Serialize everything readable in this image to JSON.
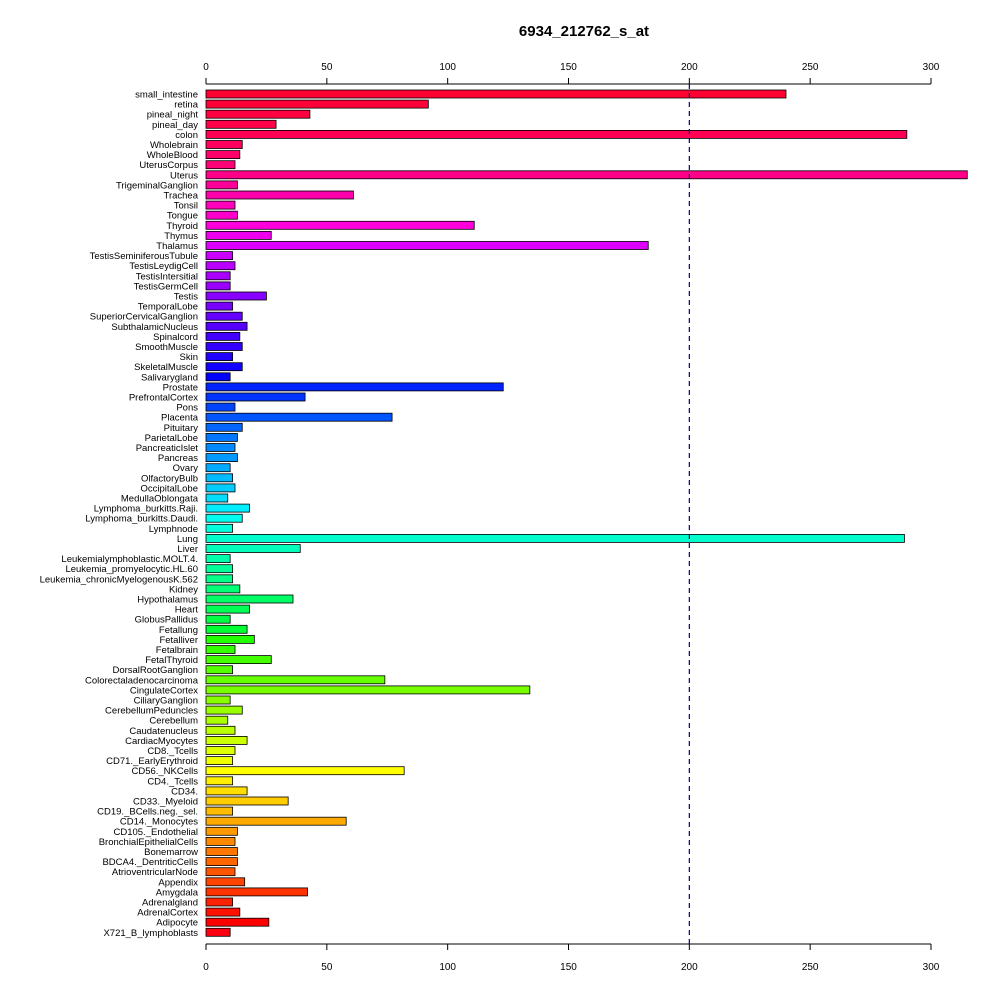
{
  "chart_data": {
    "type": "bar",
    "orientation": "horizontal",
    "title": "6934_212762_s_at",
    "xlabel": "",
    "ylabel": "",
    "xlim": [
      0,
      300
    ],
    "x_ticks": [
      0,
      50,
      100,
      150,
      200,
      250,
      300
    ],
    "reference_line": 200,
    "reference_line_color": "#00008B",
    "grid": false,
    "legend": "none",
    "categories": [
      "small_intestine",
      "retina",
      "pineal_night",
      "pineal_day",
      "colon",
      "Wholebrain",
      "WholeBlood",
      "UterusCorpus",
      "Uterus",
      "TrigeminalGanglion",
      "Trachea",
      "Tonsil",
      "Tongue",
      "Thyroid",
      "Thymus",
      "Thalamus",
      "TestisSeminiferousTubule",
      "TestisLeydigCell",
      "TestisIntersitial",
      "TestisGermCell",
      "Testis",
      "TemporalLobe",
      "SuperiorCervicalGanglion",
      "SubthalamicNucleus",
      "Spinalcord",
      "SmoothMuscle",
      "Skin",
      "SkeletalMuscle",
      "Salivarygland",
      "Prostate",
      "PrefrontalCortex",
      "Pons",
      "Placenta",
      "Pituitary",
      "ParietalLobe",
      "PancreaticIslet",
      "Pancreas",
      "Ovary",
      "OlfactoryBulb",
      "OccipitalLobe",
      "MedullaOblongata",
      "Lymphoma_burkitts.Raji.",
      "Lymphoma_burkitts.Daudi.",
      "Lymphnode",
      "Lung",
      "Liver",
      "Leukemialymphoblastic.MOLT.4.",
      "Leukemia_promyelocytic.HL.60",
      "Leukemia_chronicMyelogenousK.562",
      "Kidney",
      "Hypothalamus",
      "Heart",
      "GlobusPallidus",
      "Fetallung",
      "Fetalliver",
      "Fetalbrain",
      "FetalThyroid",
      "DorsalRootGanglion",
      "Colorectaladenocarcinoma",
      "CingulateCortex",
      "CiliaryGanglion",
      "CerebellumPeduncles",
      "Cerebellum",
      "Caudatenucleus",
      "CardiacMyocytes",
      "CD8._Tcells",
      "CD71._EarlyErythroid",
      "CD56._NKCells",
      "CD4._Tcells",
      "CD34.",
      "CD33._Myeloid",
      "CD19._BCells.neg._sel.",
      "CD14._Monocytes",
      "CD105._Endothelial",
      "BronchialEpithelialCells",
      "Bonemarrow",
      "BDCA4._DentriticCells",
      "AtrioventricularNode",
      "Appendix",
      "Amygdala",
      "Adrenalgland",
      "AdrenalCortex",
      "Adipocyte",
      "X721_B_lymphoblasts"
    ],
    "values": [
      240,
      92,
      43,
      29,
      290,
      15,
      14,
      12,
      315,
      13,
      61,
      12,
      13,
      111,
      27,
      183,
      11,
      12,
      10,
      10,
      25,
      11,
      15,
      17,
      14,
      15,
      11,
      15,
      10,
      123,
      41,
      12,
      77,
      15,
      13,
      12,
      13,
      10,
      11,
      12,
      9,
      18,
      15,
      11,
      289,
      39,
      10,
      11,
      11,
      14,
      36,
      18,
      10,
      17,
      20,
      12,
      27,
      11,
      74,
      134,
      10,
      15,
      9,
      12,
      17,
      12,
      11,
      82,
      11,
      17,
      34,
      11,
      58,
      13,
      12,
      13,
      13,
      12,
      16,
      42,
      11,
      14,
      26,
      10
    ],
    "colors": [
      "#FF0033",
      "#FF0038",
      "#FF0040",
      "#FF0048",
      "#FF0055",
      "#FF005F",
      "#FF006A",
      "#FF0077",
      "#FF0088",
      "#FF0099",
      "#FF00AA",
      "#FF00BB",
      "#FF00CC",
      "#FF00DD",
      "#EE00EE",
      "#DD00FF",
      "#CC00FF",
      "#BB00FF",
      "#AA00FF",
      "#9900FF",
      "#8800FF",
      "#7700FF",
      "#6600FF",
      "#5500FF",
      "#4400FF",
      "#3300FF",
      "#2200FF",
      "#1100FF",
      "#0000FF",
      "#0022FF",
      "#0033FF",
      "#0044FF",
      "#0055FF",
      "#0066FF",
      "#0077FF",
      "#0088FF",
      "#0099FF",
      "#00AAFF",
      "#00BBFF",
      "#00CCFF",
      "#00DDFF",
      "#00EEFF",
      "#00FFEE",
      "#00FFDD",
      "#00FFCC",
      "#00FFBB",
      "#00FFAA",
      "#00FF99",
      "#00FF88",
      "#00FF77",
      "#00FF66",
      "#00FF55",
      "#00FF44",
      "#00FF33",
      "#22FF00",
      "#33FF00",
      "#44FF00",
      "#55FF00",
      "#66FF00",
      "#77FF00",
      "#88FF00",
      "#99FF00",
      "#AAFF00",
      "#BBFF00",
      "#CCFF00",
      "#DDFF00",
      "#EEFF00",
      "#FFFF00",
      "#FFEE00",
      "#FFDD00",
      "#FFCC00",
      "#FFBB00",
      "#FFAA00",
      "#FF9900",
      "#FF8800",
      "#FF7700",
      "#FF6600",
      "#FF5500",
      "#FF4400",
      "#FF3300",
      "#FF2200",
      "#FF1100",
      "#FF0000",
      "#FF0011"
    ]
  }
}
